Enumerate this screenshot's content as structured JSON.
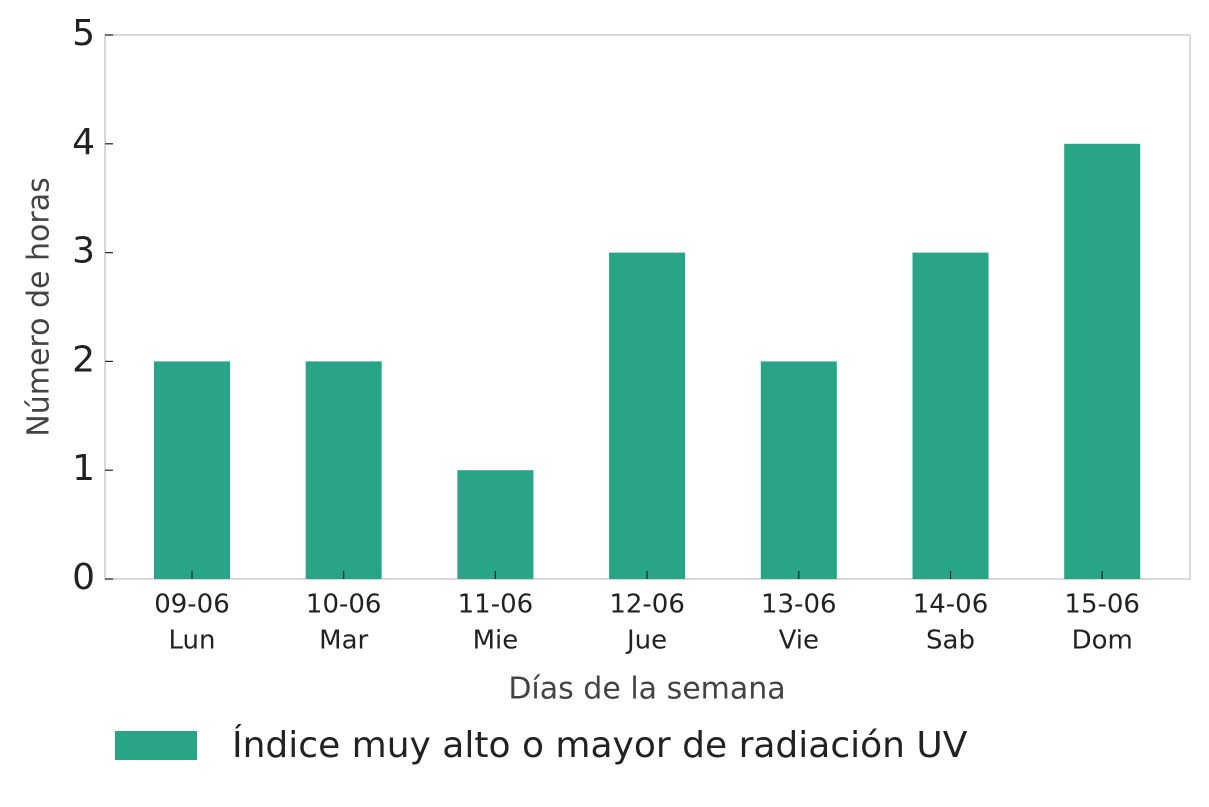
{
  "chart_data": {
    "type": "bar",
    "categories": [
      [
        "09-06",
        "Lun"
      ],
      [
        "10-06",
        "Mar"
      ],
      [
        "11-06",
        "Mie"
      ],
      [
        "12-06",
        "Jue"
      ],
      [
        "13-06",
        "Vie"
      ],
      [
        "14-06",
        "Sab"
      ],
      [
        "15-06",
        "Dom"
      ]
    ],
    "series": [
      {
        "name": "Índice muy alto o mayor de radiación UV",
        "color": "#27a586",
        "values": [
          2,
          2,
          1,
          3,
          2,
          3,
          4
        ]
      }
    ],
    "xlabel": "Días de la semana",
    "ylabel": "Número de horas",
    "ylim": [
      0,
      5
    ],
    "yticks": [
      0,
      1,
      2,
      3,
      4,
      5
    ],
    "grid": false
  }
}
